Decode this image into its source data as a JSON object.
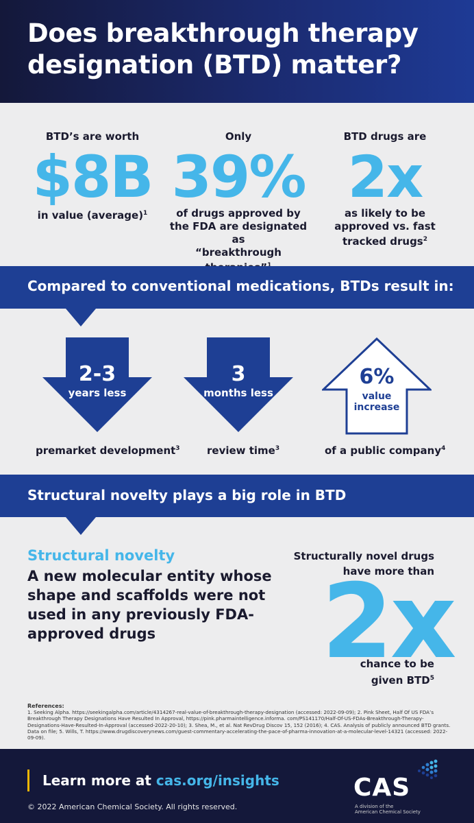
{
  "header": {
    "title": "Does breakthrough therapy designation (BTD) matter?"
  },
  "stats": [
    {
      "label": "BTD’s are worth",
      "value": "$8B",
      "desc_lines": [
        "in value (average)"
      ],
      "ref": "1"
    },
    {
      "label": "Only",
      "value": "39%",
      "desc_lines": [
        "of drugs approved by",
        "the FDA are designated as",
        "“breakthrough therapies”"
      ],
      "ref": "1"
    },
    {
      "label": "BTD drugs are",
      "value": "2x",
      "desc_lines": [
        "as likely to be",
        "approved  vs. fast",
        "tracked drugs"
      ],
      "ref": "2"
    }
  ],
  "band1": {
    "text": "Compared to conventional medications, BTDs result in:"
  },
  "arrows": [
    {
      "number": "2-3",
      "unit": "years less",
      "caption": "premarket development",
      "ref": "3",
      "direction": "down"
    },
    {
      "number": "3",
      "unit": "months less",
      "caption": "review time",
      "ref": "3",
      "direction": "down"
    },
    {
      "number": "6%",
      "unit_lines": [
        "value",
        "increase"
      ],
      "caption": "of a public company",
      "ref": "4",
      "direction": "up"
    }
  ],
  "band2": {
    "text": "Structural novelty plays a big role in BTD"
  },
  "novelty": {
    "term": "Structural novelty",
    "definition": "A new molecular entity whose shape and scaffolds were not used in any previously FDA-approved drugs",
    "right_top_lines": [
      "Structurally novel drugs",
      "have more than"
    ],
    "right_big": "2x",
    "right_bottom_lines": [
      "chance to be",
      "given BTD"
    ],
    "ref": "5"
  },
  "references": {
    "heading": "References:",
    "text": "1. Seeking Alpha. https://seekingalpha.com/article/4314267-real-value-of-breakthrough-therapy-designation (accessed: 2022-09-09); 2. Pink Sheet, Half Of US FDA’s Breakthrough Therapy Designations Have Resulted In Approval, https://pink.pharmaintelligence.informa. com/PS141170/Half-Of-US-FDAs-Breakthrough-Therapy-Designations-Have-Resulted-In-Approval  (accessed-2022-20-10); 3. Shea, M., et al. Nat RevDrug Discov 15, 152 (2016);  4. CAS. Analysis of publicly announced BTD grants. Data on file;  5. Wills, T. https://www.drugdiscoverynews.com/guest-commentary-accelerating-the-pace-of-pharma-innovation-at-a-molecular-level-14321 (accessed: 2022-09-09)."
  },
  "footer": {
    "learn_prefix": "Learn more at ",
    "learn_link": "cas.org/insights",
    "copyright": "© 2022 American Chemical Society. All rights reserved.",
    "logo_text": "CAS",
    "division_line1": "A division of the",
    "division_line2": "American Chemical Society"
  },
  "colors": {
    "navy": "#14183a",
    "band_blue": "#1e3f94",
    "accent_cyan": "#45b6e9",
    "gold": "#f2b705",
    "background": "#ededee"
  }
}
